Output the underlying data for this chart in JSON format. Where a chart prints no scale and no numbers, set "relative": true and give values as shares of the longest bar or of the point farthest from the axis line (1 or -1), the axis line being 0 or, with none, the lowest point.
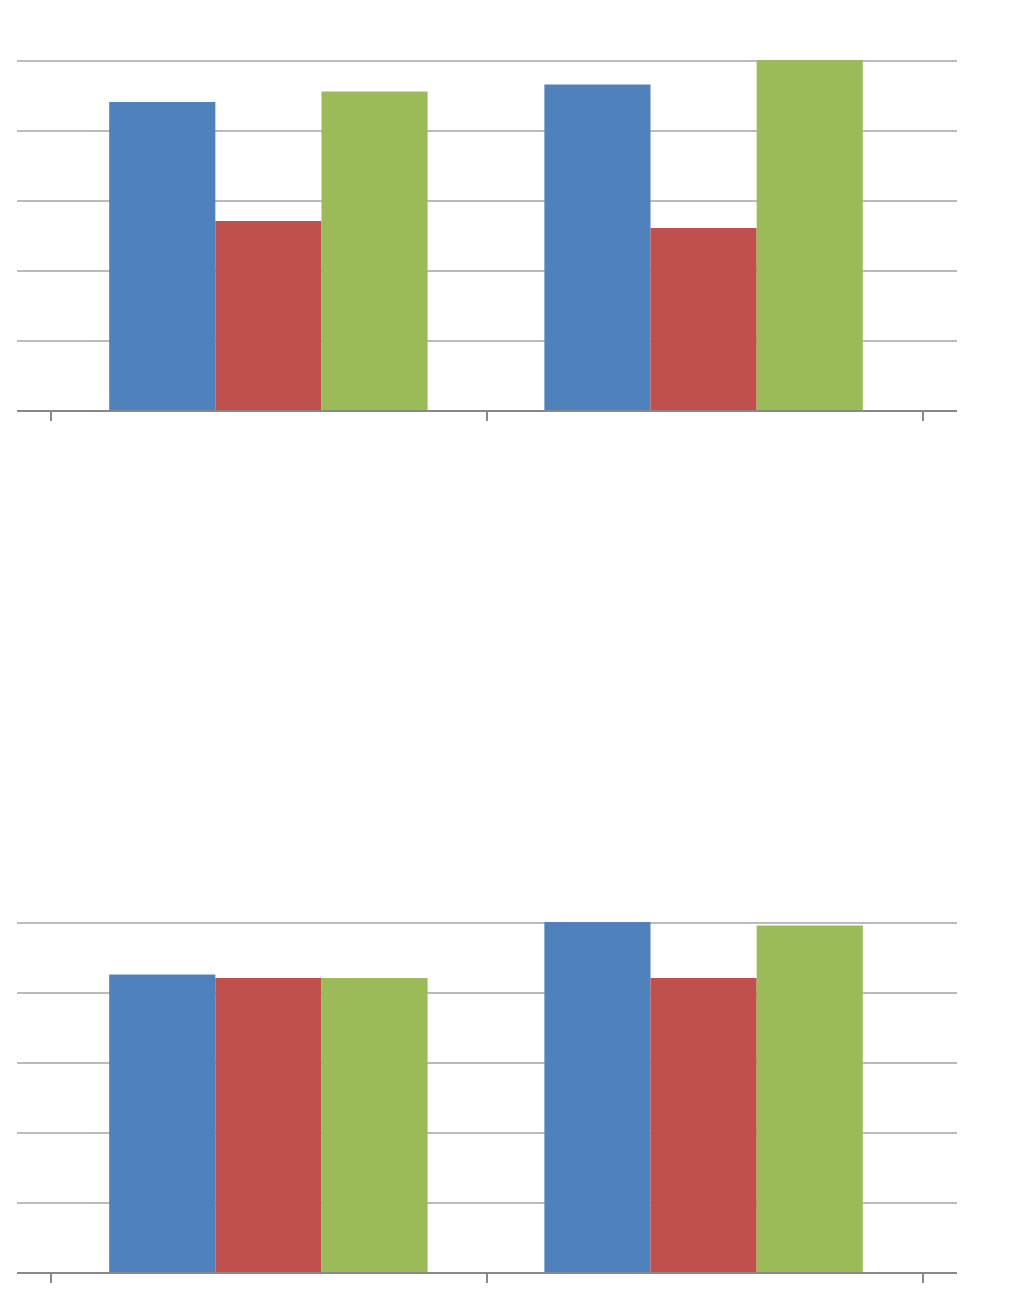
{
  "chart_data": [
    {
      "type": "bar",
      "relative": true,
      "grid": true,
      "tick_labels": false,
      "categories": [
        null,
        null
      ],
      "series": [
        {
          "color": "#4f81bd",
          "values": [
            0.88,
            0.93
          ]
        },
        {
          "color": "#c0504d",
          "values": [
            0.54,
            0.52
          ]
        },
        {
          "color": "#9bbb59",
          "values": [
            0.91,
            1
          ]
        }
      ]
    },
    {
      "type": "bar",
      "relative": true,
      "grid": true,
      "tick_labels": false,
      "categories": [
        null,
        null
      ],
      "series": [
        {
          "color": "#4f81bd",
          "values": [
            0.85,
            1
          ]
        },
        {
          "color": "#c0504d",
          "values": [
            0.84,
            0.84
          ]
        },
        {
          "color": "#9bbb59",
          "values": [
            0.84,
            0.99
          ]
        }
      ]
    }
  ]
}
